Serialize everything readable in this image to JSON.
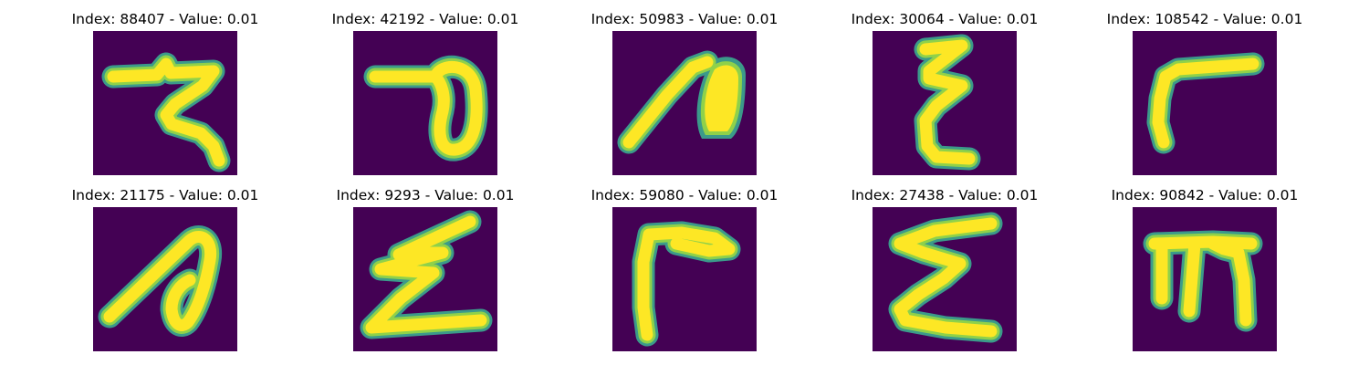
{
  "colors": {
    "background": "#440154",
    "stroke_core": "#fde725",
    "stroke_mid": "#8fd14a",
    "stroke_edge": "#3b9a8a"
  },
  "panels": [
    {
      "title": "Index: 88407 - Value: 0.01"
    },
    {
      "title": "Index: 42192 - Value: 0.01"
    },
    {
      "title": "Index: 50983 - Value: 0.01"
    },
    {
      "title": "Index: 30064 - Value: 0.01"
    },
    {
      "title": "Index: 108542 - Value: 0.01"
    },
    {
      "title": "Index: 21175 - Value: 0.01"
    },
    {
      "title": "Index: 9293 - Value: 0.01"
    },
    {
      "title": "Index: 59080 - Value: 0.01"
    },
    {
      "title": "Index: 27438 - Value: 0.01"
    },
    {
      "title": "Index: 90842 - Value: 0.01"
    }
  ]
}
